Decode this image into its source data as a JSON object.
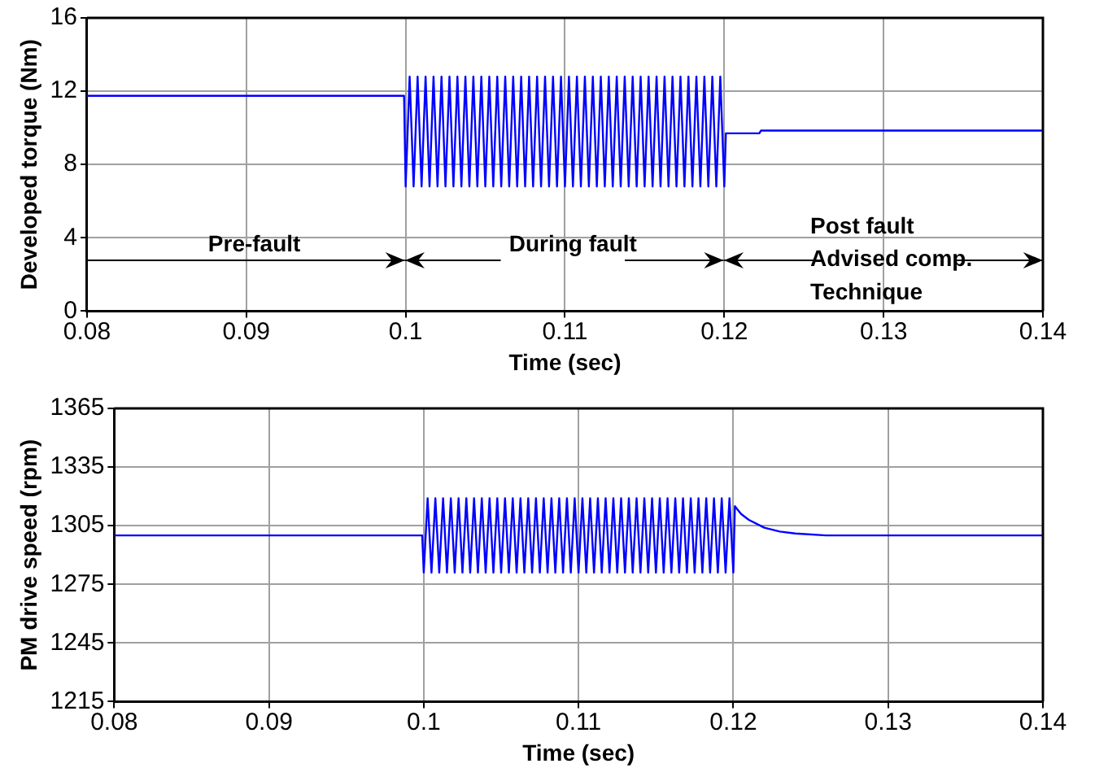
{
  "chart_data": [
    {
      "type": "line",
      "xlabel": "Time (sec)",
      "ylabel": "Developed torque (Nm)",
      "xlim": [
        0.08,
        0.14
      ],
      "xticks": [
        0.08,
        0.09,
        0.1,
        0.11,
        0.12,
        0.13,
        0.14
      ],
      "ylim": [
        0,
        16
      ],
      "yticks": [
        0,
        4,
        8,
        12,
        16
      ],
      "grid": true,
      "marker": "none",
      "line_style": "solid",
      "x": [
        0.08,
        0.0999,
        0.1,
        0.10025,
        0.1005,
        0.10075,
        0.101,
        0.10125,
        0.1015,
        0.10175,
        0.102,
        0.10225,
        0.1025,
        0.10275,
        0.103,
        0.10325,
        0.1035,
        0.10375,
        0.104,
        0.10425,
        0.1045,
        0.10475,
        0.105,
        0.10525,
        0.1055,
        0.10575,
        0.106,
        0.10625,
        0.1065,
        0.10675,
        0.107,
        0.10725,
        0.1075,
        0.10775,
        0.108,
        0.10825,
        0.1085,
        0.10875,
        0.109,
        0.10925,
        0.1095,
        0.10975,
        0.11,
        0.11025,
        0.1105,
        0.11075,
        0.111,
        0.11125,
        0.1115,
        0.11175,
        0.112,
        0.11225,
        0.1125,
        0.11275,
        0.113,
        0.11325,
        0.1135,
        0.11375,
        0.114,
        0.11425,
        0.1145,
        0.11475,
        0.115,
        0.11525,
        0.1155,
        0.11575,
        0.116,
        0.11625,
        0.1165,
        0.11675,
        0.117,
        0.11725,
        0.1175,
        0.11775,
        0.118,
        0.11825,
        0.1185,
        0.11875,
        0.119,
        0.11925,
        0.1195,
        0.11975,
        0.12,
        0.1201,
        0.1222,
        0.1223,
        0.14
      ],
      "series": [
        {
          "color": "#0000ff",
          "values": [
            11.75,
            11.75,
            6.8,
            12.8,
            6.8,
            12.8,
            6.8,
            12.8,
            6.8,
            12.8,
            6.8,
            12.8,
            6.8,
            12.8,
            6.8,
            12.8,
            6.8,
            12.8,
            6.8,
            12.8,
            6.8,
            12.8,
            6.8,
            12.8,
            6.8,
            12.8,
            6.8,
            12.8,
            6.8,
            12.8,
            6.8,
            12.8,
            6.8,
            12.8,
            6.8,
            12.8,
            6.8,
            12.8,
            6.8,
            12.8,
            6.8,
            12.8,
            6.8,
            12.8,
            6.8,
            12.8,
            6.8,
            12.8,
            6.8,
            12.8,
            6.8,
            12.8,
            6.8,
            12.8,
            6.8,
            12.8,
            6.8,
            12.8,
            6.8,
            12.8,
            6.8,
            12.8,
            6.8,
            12.8,
            6.8,
            12.8,
            6.8,
            12.8,
            6.8,
            12.8,
            6.8,
            12.8,
            6.8,
            12.8,
            6.8,
            12.8,
            6.8,
            12.8,
            6.8,
            12.8,
            6.8,
            12.8,
            6.8,
            9.7,
            9.7,
            9.85,
            9.85
          ]
        }
      ],
      "annotations": [
        "Pre-fault",
        "During fault",
        "Post fault",
        "Advised comp.",
        "Technique"
      ]
    },
    {
      "type": "line",
      "xlabel": "Time (sec)",
      "ylabel": "PM drive speed (rpm)",
      "xlim": [
        0.08,
        0.14
      ],
      "xticks": [
        0.08,
        0.09,
        0.1,
        0.11,
        0.12,
        0.13,
        0.14
      ],
      "ylim": [
        1215,
        1365
      ],
      "yticks": [
        1215,
        1245,
        1275,
        1305,
        1335,
        1365
      ],
      "grid": true,
      "marker": "none",
      "line_style": "solid",
      "x": [
        0.08,
        0.0999,
        0.1,
        0.10025,
        0.1005,
        0.10075,
        0.101,
        0.10125,
        0.1015,
        0.10175,
        0.102,
        0.10225,
        0.1025,
        0.10275,
        0.103,
        0.10325,
        0.1035,
        0.10375,
        0.104,
        0.10425,
        0.1045,
        0.10475,
        0.105,
        0.10525,
        0.1055,
        0.10575,
        0.106,
        0.10625,
        0.1065,
        0.10675,
        0.107,
        0.10725,
        0.1075,
        0.10775,
        0.108,
        0.10825,
        0.1085,
        0.10875,
        0.109,
        0.10925,
        0.1095,
        0.10975,
        0.11,
        0.11025,
        0.1105,
        0.11075,
        0.111,
        0.11125,
        0.1115,
        0.11175,
        0.112,
        0.11225,
        0.1125,
        0.11275,
        0.113,
        0.11325,
        0.1135,
        0.11375,
        0.114,
        0.11425,
        0.1145,
        0.11475,
        0.115,
        0.11525,
        0.1155,
        0.11575,
        0.116,
        0.11625,
        0.1165,
        0.11675,
        0.117,
        0.11725,
        0.1175,
        0.11775,
        0.118,
        0.11825,
        0.1185,
        0.11875,
        0.119,
        0.11925,
        0.1195,
        0.11975,
        0.12,
        0.1201,
        0.1205,
        0.121,
        0.122,
        0.123,
        0.124,
        0.126,
        0.14
      ],
      "series": [
        {
          "color": "#0000ff",
          "values": [
            1300,
            1300,
            1281,
            1319,
            1281,
            1319,
            1281,
            1319,
            1281,
            1319,
            1281,
            1319,
            1281,
            1319,
            1281,
            1319,
            1281,
            1319,
            1281,
            1319,
            1281,
            1319,
            1281,
            1319,
            1281,
            1319,
            1281,
            1319,
            1281,
            1319,
            1281,
            1319,
            1281,
            1319,
            1281,
            1319,
            1281,
            1319,
            1281,
            1319,
            1281,
            1319,
            1281,
            1319,
            1281,
            1319,
            1281,
            1319,
            1281,
            1319,
            1281,
            1319,
            1281,
            1319,
            1281,
            1319,
            1281,
            1319,
            1281,
            1319,
            1281,
            1319,
            1281,
            1319,
            1281,
            1319,
            1281,
            1319,
            1281,
            1319,
            1281,
            1319,
            1281,
            1319,
            1281,
            1319,
            1281,
            1319,
            1281,
            1319,
            1281,
            1319,
            1281,
            1315,
            1311,
            1308,
            1304,
            1302,
            1301,
            1300,
            1300
          ]
        }
      ]
    }
  ]
}
